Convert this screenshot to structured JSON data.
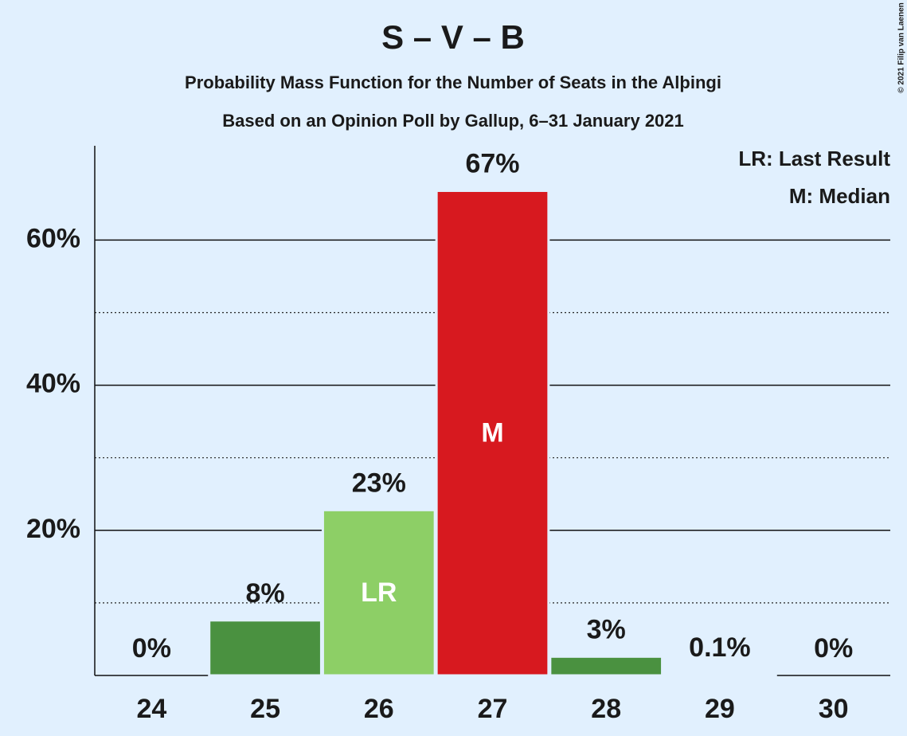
{
  "chart_data": {
    "type": "bar",
    "title": "S – V – B",
    "subtitle": "Probability Mass Function for the Number of Seats in the Alþingi",
    "subtitle2": "Based on an Opinion Poll by Gallup, 6–31 January 2021",
    "categories": [
      "24",
      "25",
      "26",
      "27",
      "28",
      "29",
      "30"
    ],
    "values": [
      0,
      7.6,
      22.8,
      66.8,
      2.6,
      0.1,
      0
    ],
    "value_labels": [
      "0%",
      "8%",
      "23%",
      "67%",
      "3%",
      "0.1%",
      "0%"
    ],
    "colors": [
      "#4a9140",
      "#4a9140",
      "#8dcf66",
      "#d7191f",
      "#4a9140",
      "#4a9140",
      "#4a9140"
    ],
    "bar_labels": [
      null,
      null,
      "LR",
      "M",
      null,
      null,
      null
    ],
    "ylim": [
      0,
      73
    ],
    "yticks": [
      {
        "value": 20,
        "label": "20%"
      },
      {
        "value": 40,
        "label": "40%"
      },
      {
        "value": 60,
        "label": "60%"
      }
    ],
    "minor_yticks": [
      10,
      30,
      50
    ],
    "grid": true,
    "legend": [
      "LR: Last Result",
      "M: Median"
    ],
    "legend_position": "upper right",
    "copyright": "© 2021 Filip van Laenen"
  }
}
